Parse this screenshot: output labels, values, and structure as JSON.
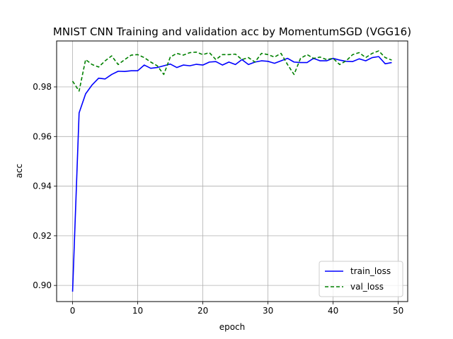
{
  "chart_data": {
    "type": "line",
    "title": "MNIST CNN Training and validation acc by MomentumSGD (VGG16)",
    "xlabel": "epoch",
    "ylabel": "acc",
    "xlim": [
      -2.45,
      51.45
    ],
    "ylim": [
      0.8935,
      0.9985
    ],
    "xticks": [
      0,
      10,
      20,
      30,
      40,
      50
    ],
    "yticks": [
      0.9,
      0.92,
      0.94,
      0.96,
      0.98
    ],
    "ytick_labels": [
      "0.90",
      "0.92",
      "0.94",
      "0.96",
      "0.98"
    ],
    "grid": true,
    "legend_position": "lower-right",
    "x": [
      0,
      1,
      2,
      3,
      4,
      5,
      6,
      7,
      8,
      9,
      10,
      11,
      12,
      13,
      14,
      15,
      16,
      17,
      18,
      19,
      20,
      21,
      22,
      23,
      24,
      25,
      26,
      27,
      28,
      29,
      30,
      31,
      32,
      33,
      34,
      35,
      36,
      37,
      38,
      39,
      40,
      41,
      42,
      43,
      44,
      45,
      46,
      47,
      48,
      49
    ],
    "series": [
      {
        "name": "train_loss",
        "color": "#0000ff",
        "style": "solid",
        "values": [
          0.8975,
          0.9695,
          0.9772,
          0.9808,
          0.9835,
          0.9832,
          0.985,
          0.9863,
          0.9862,
          0.9865,
          0.9865,
          0.9888,
          0.9875,
          0.9878,
          0.9885,
          0.9892,
          0.9878,
          0.9888,
          0.9885,
          0.9891,
          0.9888,
          0.99,
          0.9902,
          0.9888,
          0.99,
          0.989,
          0.991,
          0.989,
          0.99,
          0.9905,
          0.9903,
          0.9895,
          0.9905,
          0.9915,
          0.99,
          0.9898,
          0.9898,
          0.9915,
          0.9905,
          0.9905,
          0.9915,
          0.9908,
          0.9903,
          0.9902,
          0.9913,
          0.9905,
          0.9918,
          0.9922,
          0.9893,
          0.9898
        ]
      },
      {
        "name": "val_loss",
        "color": "#008000",
        "style": "dashed",
        "values": [
          0.9823,
          0.9783,
          0.991,
          0.989,
          0.988,
          0.9905,
          0.9925,
          0.989,
          0.991,
          0.9928,
          0.993,
          0.9918,
          0.99,
          0.9885,
          0.985,
          0.992,
          0.9935,
          0.9928,
          0.9938,
          0.994,
          0.993,
          0.9938,
          0.991,
          0.993,
          0.993,
          0.9932,
          0.991,
          0.9918,
          0.99,
          0.9935,
          0.993,
          0.992,
          0.9935,
          0.989,
          0.985,
          0.9915,
          0.993,
          0.9915,
          0.992,
          0.991,
          0.9915,
          0.989,
          0.9905,
          0.993,
          0.9938,
          0.9918,
          0.9935,
          0.9945,
          0.9918,
          0.9908
        ]
      }
    ]
  }
}
